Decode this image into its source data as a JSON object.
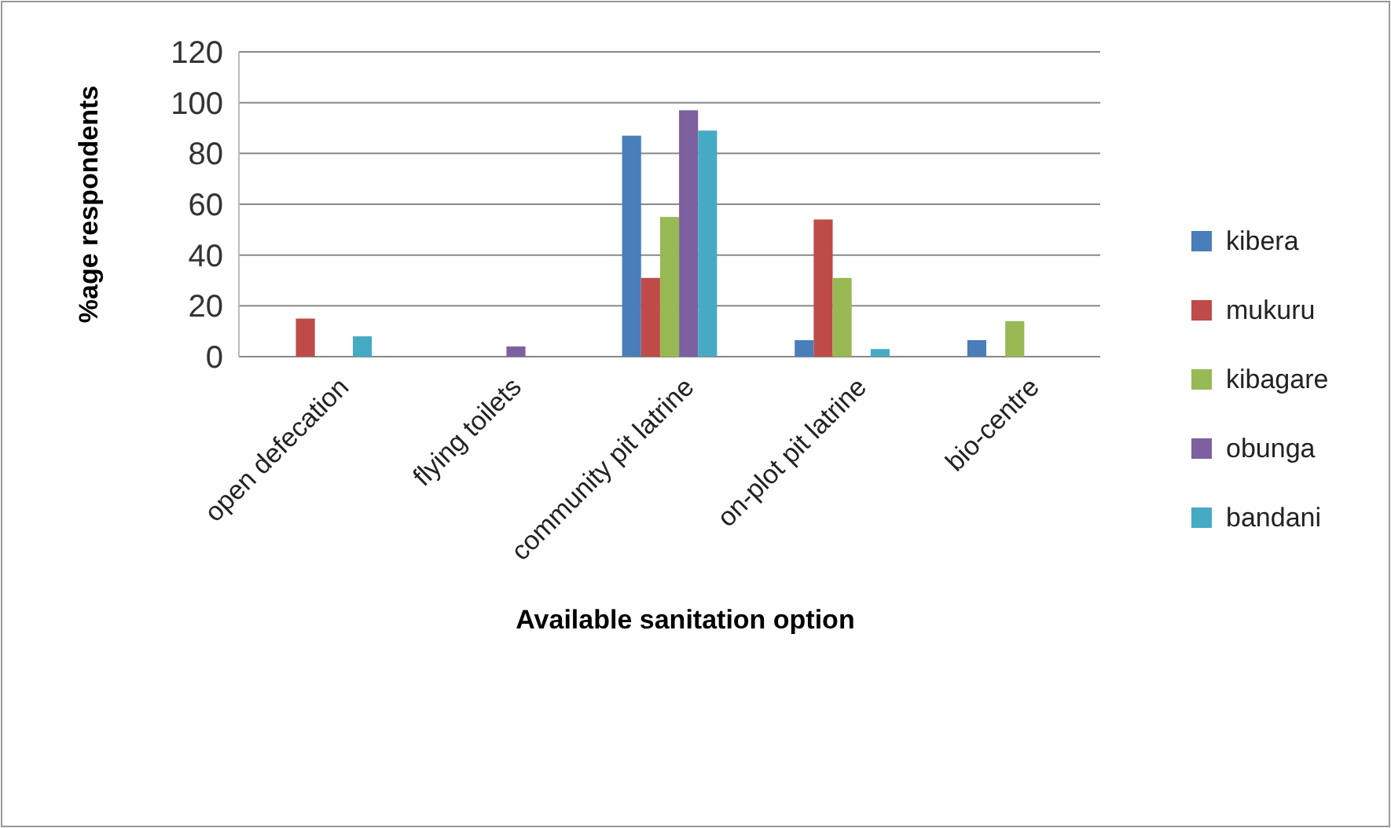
{
  "chart_data": {
    "type": "bar",
    "xlabel": "Available sanitation option",
    "ylabel": "%age respondents",
    "categories": [
      "open defecation",
      "flying toilets",
      "community pit latrine",
      "on-plot pit latrine",
      "bio-centre"
    ],
    "series": [
      {
        "name": "kibera",
        "color": "#4a7ebb",
        "values": [
          0,
          0,
          87,
          6.5,
          6.5
        ]
      },
      {
        "name": "mukuru",
        "color": "#be4b48",
        "values": [
          15,
          0,
          31,
          54,
          0
        ]
      },
      {
        "name": "kibagare",
        "color": "#98b954",
        "values": [
          0,
          0,
          55,
          31,
          14
        ]
      },
      {
        "name": "obunga",
        "color": "#7d60a0",
        "values": [
          0,
          4,
          97,
          0,
          0
        ]
      },
      {
        "name": "bandani",
        "color": "#46aac5",
        "values": [
          8,
          0,
          89,
          3,
          0
        ]
      }
    ],
    "ylim": [
      0,
      120
    ],
    "yticks": [
      0,
      20,
      40,
      60,
      80,
      100,
      120
    ],
    "grid": "y",
    "legend": "right"
  }
}
